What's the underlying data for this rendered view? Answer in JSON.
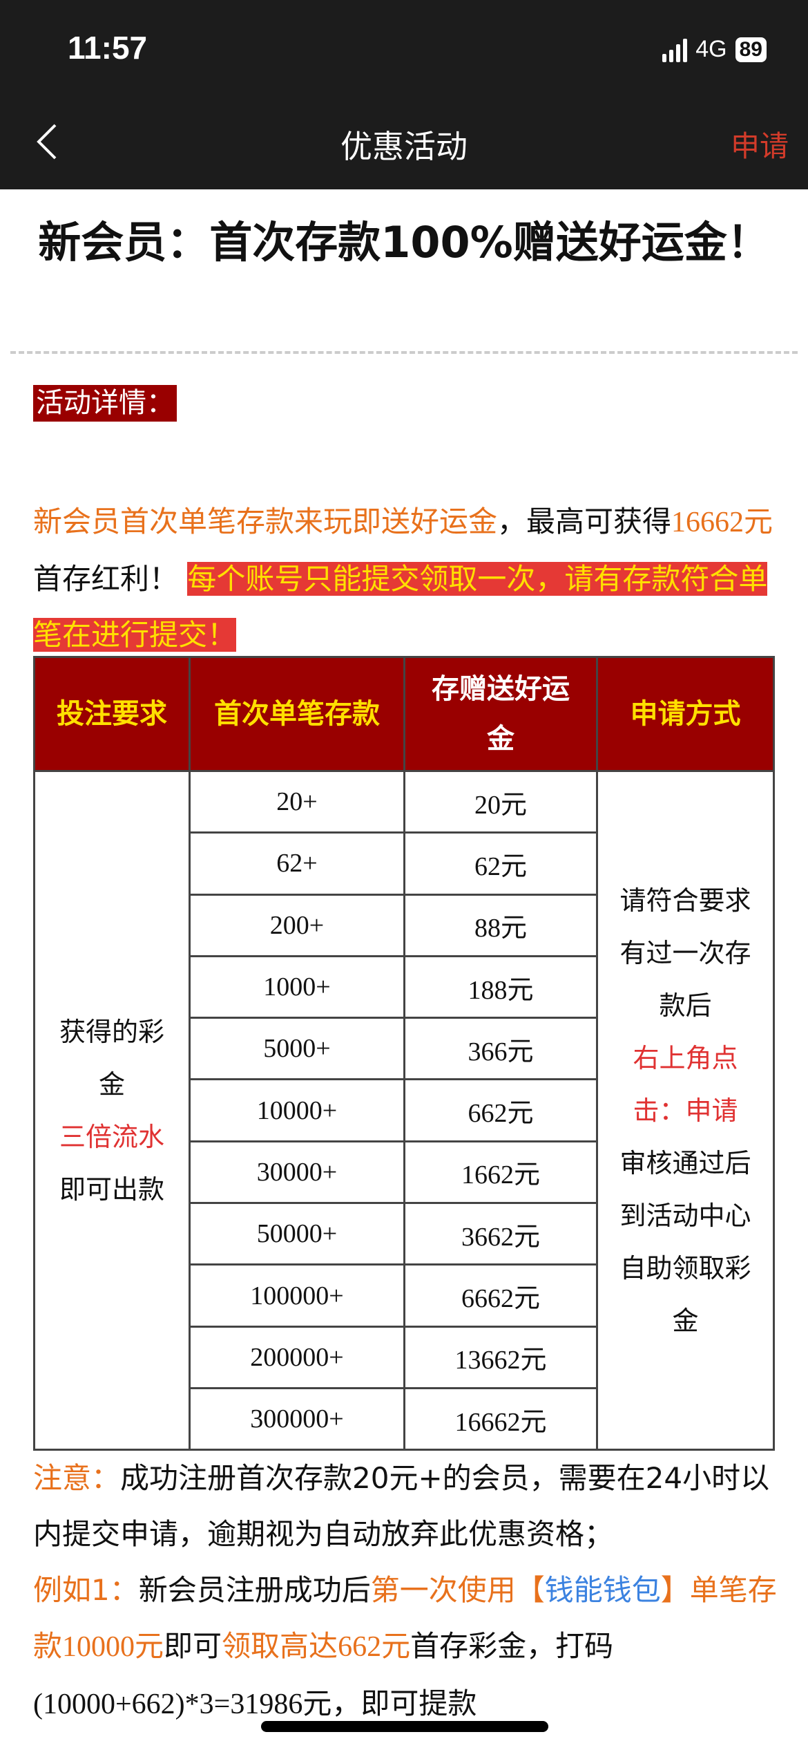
{
  "status_bar": {
    "time": "11:57",
    "network": "4G",
    "battery": "89"
  },
  "nav": {
    "title": "优惠活动",
    "apply_label": "申请",
    "back_icon": "chevron-left-icon"
  },
  "promo": {
    "title": "新会员：首次存款100%赠送好运金！",
    "details_label": "活动详情：",
    "intro": {
      "p1": "新会员首次单笔存款来玩即送好运金",
      "p2": "，最高可获得",
      "p3": "16662",
      "p4": "元",
      "p5": "首存红利！",
      "p6": "每个账号只能提交领取一次，请有存款符合单笔在进行提交！"
    }
  },
  "table": {
    "headers": [
      "投注要求",
      "首次单笔存款",
      "存赠送好运金",
      "申请方式"
    ],
    "rows": [
      [
        "20+",
        "20元"
      ],
      [
        "62+",
        "62元"
      ],
      [
        "200+",
        "88元"
      ],
      [
        "1000+",
        "188元"
      ],
      [
        "5000+",
        "366元"
      ],
      [
        "10000+",
        "662元"
      ],
      [
        "30000+",
        "1662元"
      ],
      [
        "50000+",
        "3662元"
      ],
      [
        "100000+",
        "6662元"
      ],
      [
        "200000+",
        "13662元"
      ],
      [
        "300000+",
        "16662元"
      ]
    ],
    "requirement": {
      "a": "获得的彩金",
      "b": "三倍流水",
      "c": "即可出款"
    },
    "method": {
      "a": "请符合要求有过一次存款后",
      "b": "右上角点击：申请",
      "c": "审核通过后到活动中心自助领取彩金"
    }
  },
  "notes": {
    "n1_label": "注意：",
    "n1_text": "成功注册首次存款20元+的会员，需要在24小时以内提交申请，逾期视为自动放弃此优惠资格；",
    "e_label": "例如1：",
    "e1": "新会员注册成功后",
    "e2": "第一次使用【",
    "e3": "钱能钱包",
    "e4": "】单笔存款",
    "e5": "10000",
    "e6": "元",
    "e7": "即可",
    "e8": "领取高达",
    "e9": "662",
    "e10": "元",
    "e11": "首存彩金，打码",
    "e12": "(10000+662)*3=31986",
    "e13": "元，即可提款"
  },
  "colors": {
    "header_bg": "#1c1c1c",
    "table_header": "#990000",
    "accent_orange": "#e8711c",
    "red": "#e03232",
    "yellow": "#ffe000"
  }
}
